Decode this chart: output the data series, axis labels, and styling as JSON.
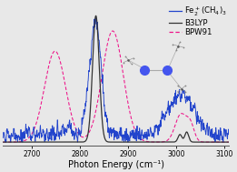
{
  "xmin": 2640,
  "xmax": 3110,
  "xlabel": "Photon Energy (cm⁻¹)",
  "background_color": "#e8e8e8",
  "axis_fontsize": 7,
  "legend_fontsize": 6.2,
  "tick_fontsize": 5.5
}
